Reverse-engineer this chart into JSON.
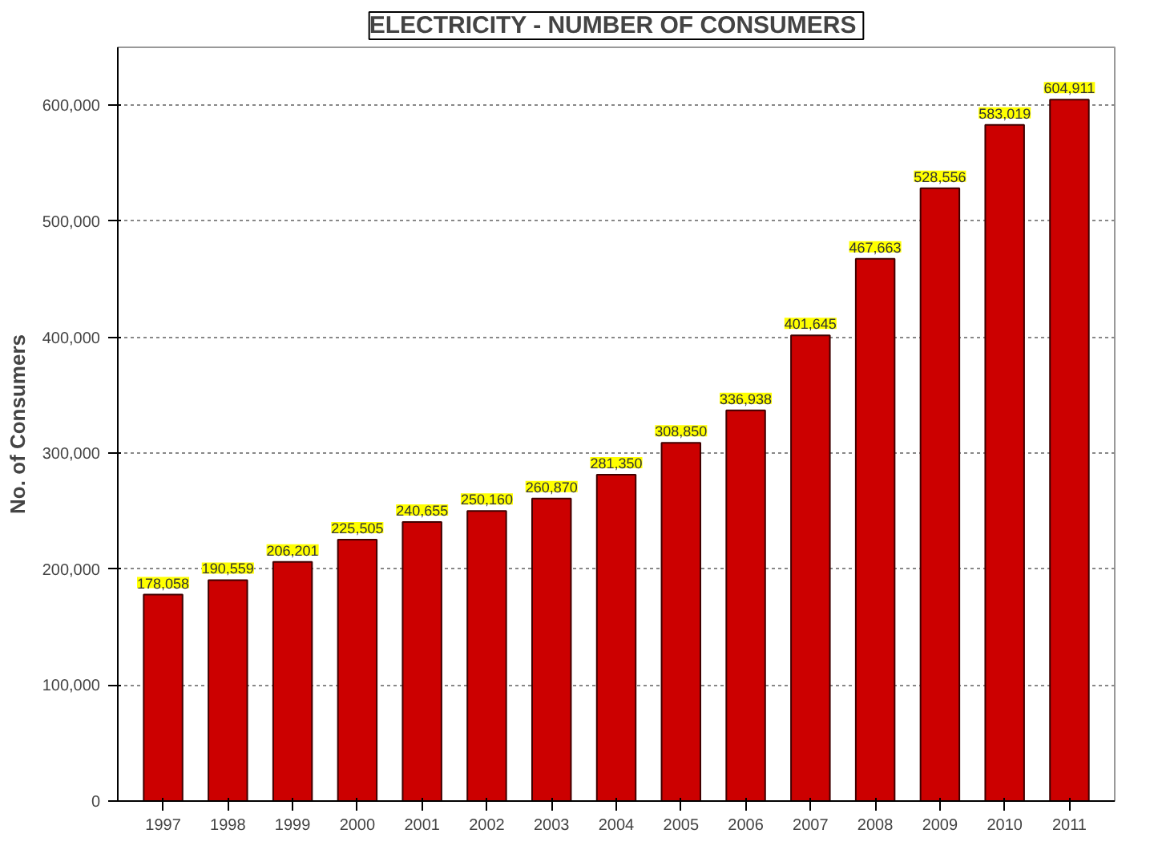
{
  "chart_data": {
    "type": "bar",
    "title": "ELECTRICITY  - NUMBER OF CONSUMERS",
    "ylabel": "No. of Consumers",
    "categories": [
      "1997",
      "1998",
      "1999",
      "2000",
      "2001",
      "2002",
      "2003",
      "2004",
      "2005",
      "2006",
      "2007",
      "2008",
      "2009",
      "2010",
      "2011"
    ],
    "values": [
      178058,
      190559,
      206201,
      225505,
      240655,
      250160,
      260870,
      281350,
      308850,
      336938,
      401645,
      467663,
      528556,
      583019,
      604911
    ],
    "color": "#cc0000",
    "ylim": [
      0,
      650000
    ],
    "yticks": [
      {
        "value": 0,
        "label": "0"
      },
      {
        "value": 100000,
        "label": "100,000"
      },
      {
        "value": 200000,
        "label": "200,000"
      },
      {
        "value": 300000,
        "label": "300,000"
      },
      {
        "value": 400000,
        "label": "400,000"
      },
      {
        "value": 500000,
        "label": "500,000"
      },
      {
        "value": 600000,
        "label": "600,000"
      }
    ],
    "value_labels": [
      "178,058",
      "190,559",
      "206,201",
      "225,505",
      "240,655",
      "250,160",
      "260,870",
      "281,350",
      "308,850",
      "336,938",
      "401,645",
      "467,663",
      "528,556",
      "583,019",
      "604,911"
    ],
    "grid": "y"
  }
}
